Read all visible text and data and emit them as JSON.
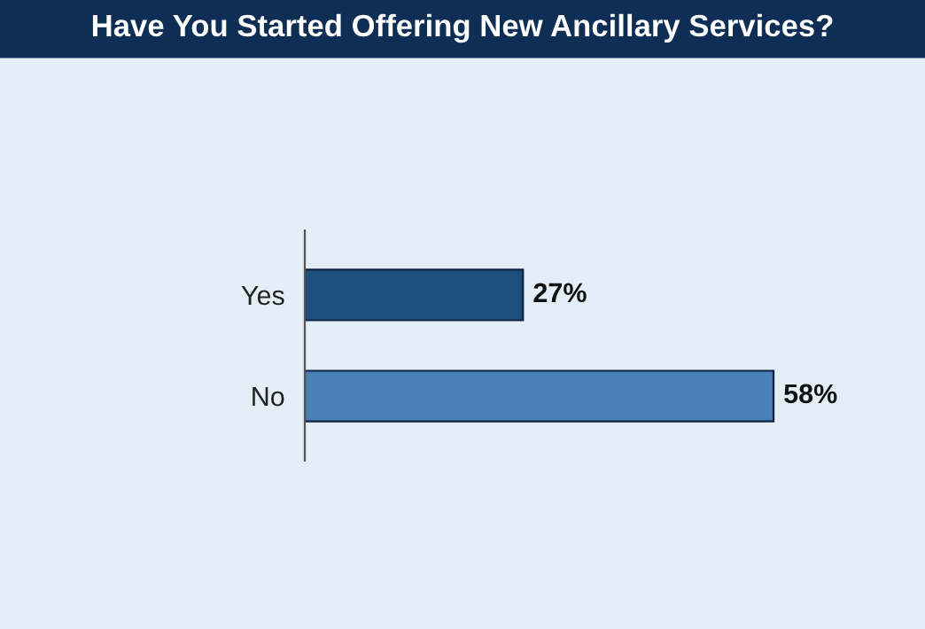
{
  "chart_data": {
    "type": "bar",
    "orientation": "horizontal",
    "title": "Have You Started Offering New Ancillary Services?",
    "categories": [
      "Yes",
      "No"
    ],
    "values": [
      27,
      58
    ],
    "value_labels": [
      "27%",
      "58%"
    ],
    "colors": [
      "#1d4e7c",
      "#4a80b8"
    ],
    "tick_labels": "y",
    "grid": false,
    "legend": false
  }
}
